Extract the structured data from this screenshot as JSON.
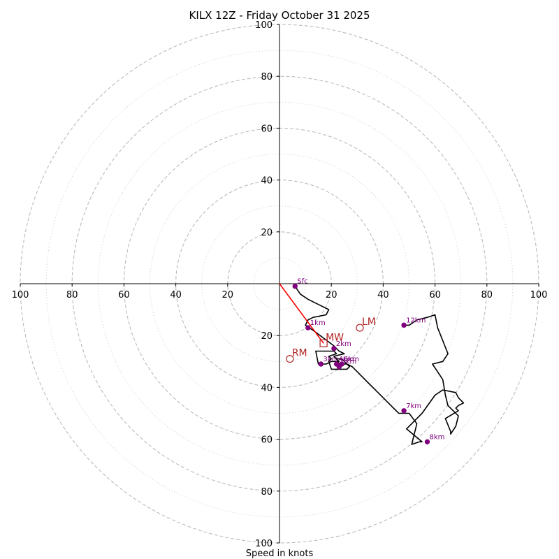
{
  "chart_data": {
    "type": "scatter",
    "title": "KILX 12Z - Friday October 31 2025",
    "xlabel": "Speed in knots",
    "ylabel": "",
    "xlim": [
      -100,
      100
    ],
    "ylim": [
      -100,
      100
    ],
    "major_rings": [
      20,
      40,
      60,
      80,
      100
    ],
    "minor_rings": [
      10,
      30,
      50,
      70,
      90
    ],
    "x_tick_labels": [
      "100",
      "80",
      "60",
      "40",
      "20",
      "20",
      "40",
      "60",
      "80",
      "100"
    ],
    "y_tick_labels_up": [
      "20",
      "40",
      "60",
      "80",
      "100"
    ],
    "y_tick_labels_down": [
      "20",
      "40",
      "60",
      "80",
      "100"
    ],
    "hodograph_trace": {
      "color": "#000000",
      "u": [
        6,
        8,
        11,
        15,
        19,
        18,
        13,
        11,
        10,
        13,
        17,
        21,
        23,
        25,
        21,
        23,
        20,
        18,
        15,
        14,
        15,
        21,
        22,
        19,
        20,
        19,
        20,
        26,
        27,
        24,
        22,
        23,
        23,
        24,
        26,
        28,
        30,
        34,
        38,
        42,
        46,
        50,
        53,
        51,
        54,
        55,
        49,
        53,
        55,
        60,
        63,
        68,
        69,
        71,
        69,
        68,
        69,
        64,
        66,
        66,
        68,
        69,
        65,
        64,
        63,
        61,
        59,
        63,
        65,
        63,
        61,
        60,
        57,
        53,
        50,
        48
      ],
      "v": [
        -1,
        -4,
        -6,
        -8,
        -10,
        -12,
        -13,
        -14,
        -16,
        -18,
        -21,
        -24,
        -26,
        -27,
        -28,
        -30,
        -30,
        -31,
        -31,
        -26,
        -26,
        -26,
        -27,
        -28,
        -29,
        -30,
        -33,
        -33,
        -32,
        -29,
        -29,
        -31,
        -32,
        -31,
        -31,
        -32,
        -34,
        -38,
        -42,
        -46,
        -50,
        -50,
        -54,
        -62,
        -61,
        -61,
        -56,
        -52,
        -50,
        -43,
        -41,
        -42,
        -44,
        -46,
        -47,
        -48,
        -49,
        -52,
        -57,
        -58,
        -55,
        -51,
        -47,
        -43,
        -37,
        -34,
        -31,
        -30,
        -27,
        -22,
        -17,
        -12,
        -13,
        -14,
        -16,
        -16
      ]
    },
    "heights": [
      {
        "label": "Sfc",
        "u": 6,
        "v": -1
      },
      {
        "label": "1km",
        "u": 11,
        "v": -17
      },
      {
        "label": "2km",
        "u": 21,
        "v": -25
      },
      {
        "label": "3km",
        "u": 16,
        "v": -31
      },
      {
        "label": "4km",
        "u": 22,
        "v": -31
      },
      {
        "label": "5km",
        "u": 23,
        "v": -32
      },
      {
        "label": "6km",
        "u": 24,
        "v": -31
      },
      {
        "label": "7km",
        "u": 48,
        "v": -49
      },
      {
        "label": "8km",
        "u": 57,
        "v": -61
      },
      {
        "label": "12km",
        "u": 48,
        "v": -16
      }
    ],
    "height_marker_color": "#800080",
    "storm_motion": {
      "color": "#b22222",
      "markers": [
        {
          "label": "LM",
          "u": 31,
          "v": -17,
          "shape": "circle"
        },
        {
          "label": "MW",
          "u": 17,
          "v": -23,
          "shape": "square"
        },
        {
          "label": "RM",
          "u": 4,
          "v": -29,
          "shape": "circle"
        }
      ],
      "vector_color": "#ff0000",
      "vector": {
        "u0": 0,
        "v0": 0,
        "u1": 17,
        "v1": -23
      }
    }
  }
}
